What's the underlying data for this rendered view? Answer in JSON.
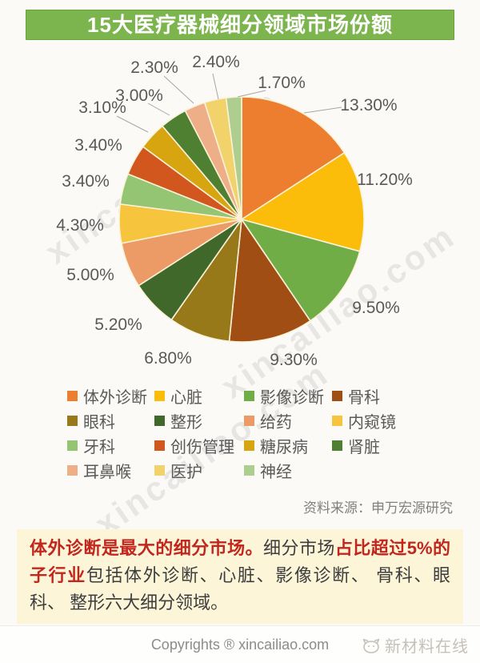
{
  "title": "15大医疗器械细分领域市场份额",
  "watermark": "xincailiao.com",
  "chart_data": {
    "type": "pie",
    "title": "15大医疗器械细分领域市场份额",
    "unit": "%",
    "legend_position": "bottom",
    "slices": [
      {
        "label": "体外诊断",
        "value": 13.3,
        "pct_label": "13.30%",
        "color": "#ED7D2F"
      },
      {
        "label": "心脏",
        "value": 11.2,
        "pct_label": "11.20%",
        "color": "#FBBD09"
      },
      {
        "label": "影像诊断",
        "value": 9.5,
        "pct_label": "9.50%",
        "color": "#70AD47"
      },
      {
        "label": "骨科",
        "value": 9.3,
        "pct_label": "9.30%",
        "color": "#A04E14"
      },
      {
        "label": "眼科",
        "value": 6.8,
        "pct_label": "6.80%",
        "color": "#97791A"
      },
      {
        "label": "整形",
        "value": 5.2,
        "pct_label": "5.20%",
        "color": "#41682B"
      },
      {
        "label": "给药",
        "value": 5.0,
        "pct_label": "5.00%",
        "color": "#EC9A66"
      },
      {
        "label": "内窥镜",
        "value": 4.3,
        "pct_label": "4.30%",
        "color": "#F6C53D"
      },
      {
        "label": "牙科",
        "value": 3.4,
        "pct_label": "3.40%",
        "color": "#93C572"
      },
      {
        "label": "创伤管理",
        "value": 3.4,
        "pct_label": "3.40%",
        "color": "#D2571F"
      },
      {
        "label": "糖尿病",
        "value": 3.1,
        "pct_label": "3.10%",
        "color": "#D7A510"
      },
      {
        "label": "肾脏",
        "value": 3.0,
        "pct_label": "3.00%",
        "color": "#4F8032"
      },
      {
        "label": "耳鼻喉",
        "value": 2.3,
        "pct_label": "2.30%",
        "color": "#EDAE88"
      },
      {
        "label": "医护",
        "value": 2.4,
        "pct_label": "2.40%",
        "color": "#F2D36B"
      },
      {
        "label": "神经",
        "value": 1.7,
        "pct_label": "1.70%",
        "color": "#AECE90"
      }
    ],
    "source": "资料来源：申万宏源研究"
  },
  "source": "资料来源：申万宏源研究",
  "note": {
    "seg1": "体外诊断是最大的细分市场。",
    "seg2": "细分市场",
    "seg3": "占比超过5%的子行业",
    "seg4": "包括体外诊断、心脏、影像诊断、 骨科、眼科、 整形六大细分领域。"
  },
  "footer": {
    "copyright": "Copyrights ® xincailiao.com",
    "brand": "新材料在线"
  },
  "colors": {
    "title_bar": "#7CB44D",
    "note_bg": "#FCF5D8",
    "highlight_red": "#C2271E",
    "label_gray": "#595959"
  }
}
